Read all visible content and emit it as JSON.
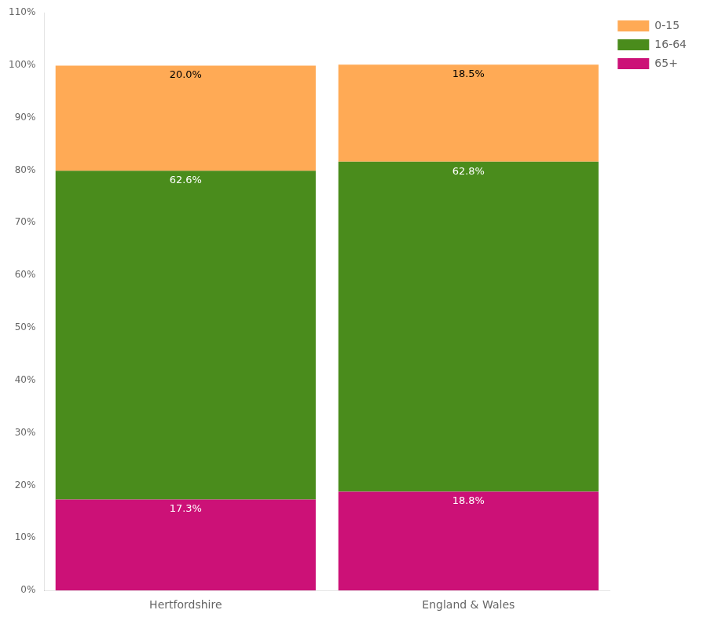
{
  "chart_data": {
    "type": "bar",
    "stacked": true,
    "categories": [
      "Hertfordshire",
      "England & Wales"
    ],
    "series": [
      {
        "name": "65+",
        "color": "#CC1177",
        "values": [
          17.3,
          18.8
        ],
        "value_labels": [
          "17.3%",
          "18.8%"
        ]
      },
      {
        "name": "16-64",
        "color": "#4A8C1C",
        "values": [
          62.6,
          62.8
        ],
        "value_labels": [
          "62.6%",
          "62.8%"
        ]
      },
      {
        "name": "0-15",
        "color": "#FFAA55",
        "values": [
          20.0,
          18.5
        ],
        "value_labels": [
          "20.0%",
          "18.5%"
        ]
      }
    ],
    "ylim": [
      0,
      110
    ],
    "yticks": [
      {
        "value": 0,
        "label": "0%"
      },
      {
        "value": 10,
        "label": "10%"
      },
      {
        "value": 20,
        "label": "20%"
      },
      {
        "value": 30,
        "label": "30%"
      },
      {
        "value": 40,
        "label": "40%"
      },
      {
        "value": 50,
        "label": "50%"
      },
      {
        "value": 60,
        "label": "60%"
      },
      {
        "value": 70,
        "label": "70%"
      },
      {
        "value": 80,
        "label": "80%"
      },
      {
        "value": 90,
        "label": "90%"
      },
      {
        "value": 100,
        "label": "100%"
      },
      {
        "value": 110,
        "label": "110%"
      }
    ],
    "grid": false,
    "legend": "right",
    "data_labels": true
  }
}
